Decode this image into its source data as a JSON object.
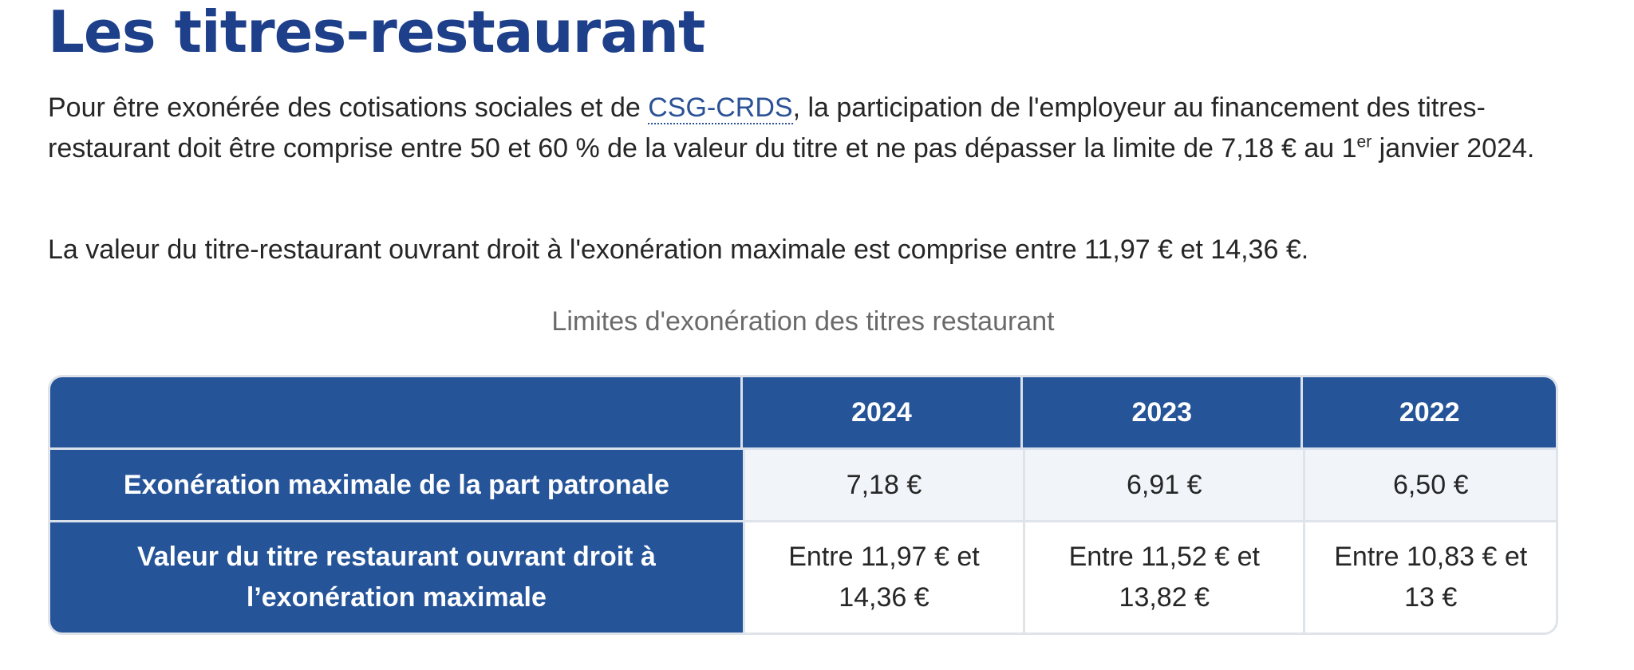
{
  "title": "Les titres-restaurant",
  "intro": {
    "before_abbr": "Pour être exonérée des cotisations sociales et de ",
    "abbr": "CSG-CRDS",
    "after_abbr": ", la participation de l'employeur au financement des titres-restaurant doit être comprise entre 50 et 60 % de la valeur du titre et ne pas dépasser la limite de 7,18 € au 1",
    "sup": "er",
    "after_sup": " janvier 2024."
  },
  "paragraph2": "La valeur du titre-restaurant ouvrant droit à l'exonération maximale est comprise entre 11,97 € et 14,36 €.",
  "table": {
    "caption": "Limites d'exonération des titres restaurant",
    "header": [
      "",
      "2024",
      "2023",
      "2022"
    ],
    "rows": [
      {
        "label": "Exonération maximale de la part patronale",
        "cells": [
          "7,18 €",
          "6,91 €",
          "6,50 €"
        ]
      },
      {
        "label_line1": "Valeur du titre restaurant ouvrant droit à",
        "label_line2": "l’exonération maximale",
        "cells": [
          [
            "Entre 11,97 € et",
            "14,36 €"
          ],
          [
            "Entre 11,52 € et",
            "13,82 €"
          ],
          [
            "Entre 10,83 € et",
            "13 €"
          ]
        ]
      }
    ]
  }
}
